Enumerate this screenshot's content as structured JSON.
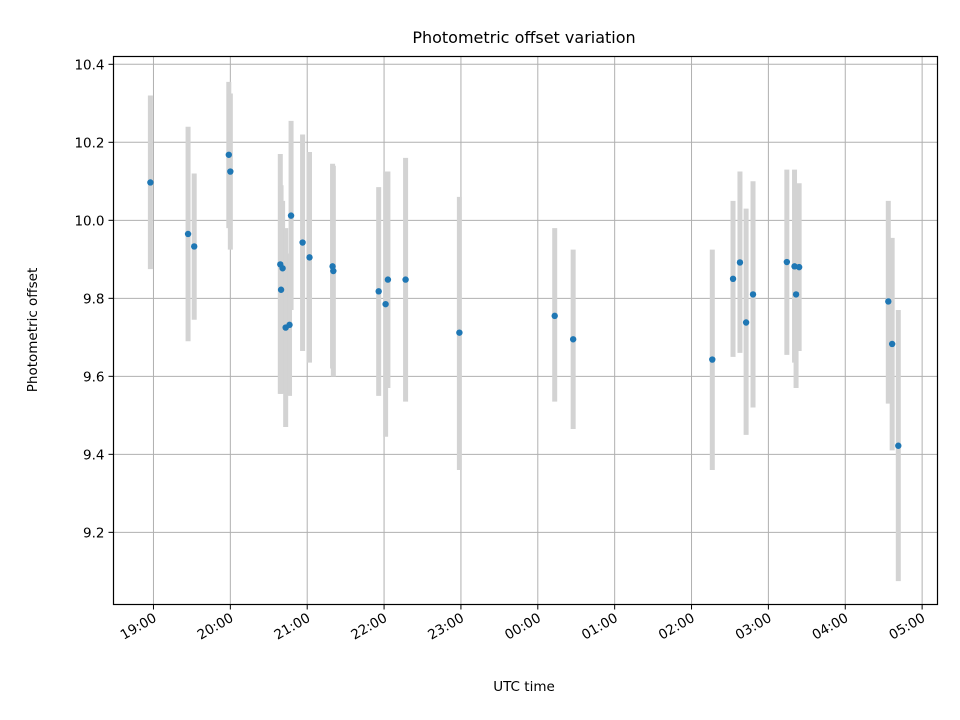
{
  "chart_data": {
    "type": "scatter",
    "title": "Photometric offset variation",
    "xlabel": "UTC time",
    "ylabel": "Photometric offset",
    "x_ticks": [
      "19:00",
      "20:00",
      "21:00",
      "22:00",
      "23:00",
      "00:00",
      "01:00",
      "02:00",
      "03:00",
      "04:00",
      "05:00"
    ],
    "x_tick_hours": [
      19,
      20,
      21,
      22,
      23,
      24,
      25,
      26,
      27,
      28,
      29
    ],
    "xlim_hours": [
      18.48,
      29.2
    ],
    "y_ticks": [
      9.2,
      9.4,
      9.6,
      9.8,
      10.0,
      10.2,
      10.4
    ],
    "y_tick_labels": [
      "9.2",
      "9.4",
      "9.6",
      "9.8",
      "10.0",
      "10.2",
      "10.4"
    ],
    "ylim": [
      9.015,
      10.42
    ],
    "grid": true,
    "marker_color": "#1f77b4",
    "errorbar_color": "#d3d3d3",
    "x_unit": "hours (UTC, values above 24 are after midnight)",
    "points": [
      {
        "t": 18.96,
        "y": 10.097,
        "lo": 9.875,
        "hi": 10.32
      },
      {
        "t": 19.45,
        "y": 9.965,
        "lo": 9.69,
        "hi": 10.24
      },
      {
        "t": 19.53,
        "y": 9.933,
        "lo": 9.745,
        "hi": 10.12
      },
      {
        "t": 19.98,
        "y": 10.168,
        "lo": 9.98,
        "hi": 10.355
      },
      {
        "t": 20.0,
        "y": 10.125,
        "lo": 9.925,
        "hi": 10.325
      },
      {
        "t": 20.65,
        "y": 9.887,
        "lo": 9.555,
        "hi": 10.17
      },
      {
        "t": 20.66,
        "y": 9.822,
        "lo": 9.555,
        "hi": 10.09
      },
      {
        "t": 20.68,
        "y": 9.877,
        "lo": 9.6,
        "hi": 10.05
      },
      {
        "t": 20.72,
        "y": 9.725,
        "lo": 9.47,
        "hi": 9.98
      },
      {
        "t": 20.77,
        "y": 9.732,
        "lo": 9.55,
        "hi": 9.915
      },
      {
        "t": 20.79,
        "y": 10.012,
        "lo": 9.77,
        "hi": 10.255
      },
      {
        "t": 20.94,
        "y": 9.943,
        "lo": 9.665,
        "hi": 10.22
      },
      {
        "t": 21.03,
        "y": 9.905,
        "lo": 9.635,
        "hi": 10.175
      },
      {
        "t": 21.33,
        "y": 9.882,
        "lo": 9.62,
        "hi": 10.145
      },
      {
        "t": 21.34,
        "y": 9.87,
        "lo": 9.6,
        "hi": 10.14
      },
      {
        "t": 21.93,
        "y": 9.818,
        "lo": 9.55,
        "hi": 10.085
      },
      {
        "t": 22.02,
        "y": 9.785,
        "lo": 9.445,
        "hi": 10.125
      },
      {
        "t": 22.05,
        "y": 9.848,
        "lo": 9.57,
        "hi": 10.125
      },
      {
        "t": 22.28,
        "y": 9.848,
        "lo": 9.535,
        "hi": 10.16
      },
      {
        "t": 22.98,
        "y": 9.712,
        "lo": 9.36,
        "hi": 10.06
      },
      {
        "t": 24.22,
        "y": 9.755,
        "lo": 9.535,
        "hi": 9.98
      },
      {
        "t": 24.46,
        "y": 9.695,
        "lo": 9.465,
        "hi": 9.925
      },
      {
        "t": 26.27,
        "y": 9.643,
        "lo": 9.36,
        "hi": 9.925
      },
      {
        "t": 26.54,
        "y": 9.85,
        "lo": 9.65,
        "hi": 10.05
      },
      {
        "t": 26.63,
        "y": 9.892,
        "lo": 9.66,
        "hi": 10.125
      },
      {
        "t": 26.71,
        "y": 9.738,
        "lo": 9.45,
        "hi": 10.03
      },
      {
        "t": 26.8,
        "y": 9.81,
        "lo": 9.52,
        "hi": 10.1
      },
      {
        "t": 27.24,
        "y": 9.893,
        "lo": 9.655,
        "hi": 10.13
      },
      {
        "t": 27.34,
        "y": 9.882,
        "lo": 9.635,
        "hi": 10.13
      },
      {
        "t": 27.36,
        "y": 9.81,
        "lo": 9.57,
        "hi": 10.05
      },
      {
        "t": 27.4,
        "y": 9.88,
        "lo": 9.665,
        "hi": 10.095
      },
      {
        "t": 28.56,
        "y": 9.792,
        "lo": 9.53,
        "hi": 10.05
      },
      {
        "t": 28.61,
        "y": 9.683,
        "lo": 9.41,
        "hi": 9.955
      },
      {
        "t": 28.69,
        "y": 9.422,
        "lo": 9.075,
        "hi": 9.77
      }
    ]
  }
}
